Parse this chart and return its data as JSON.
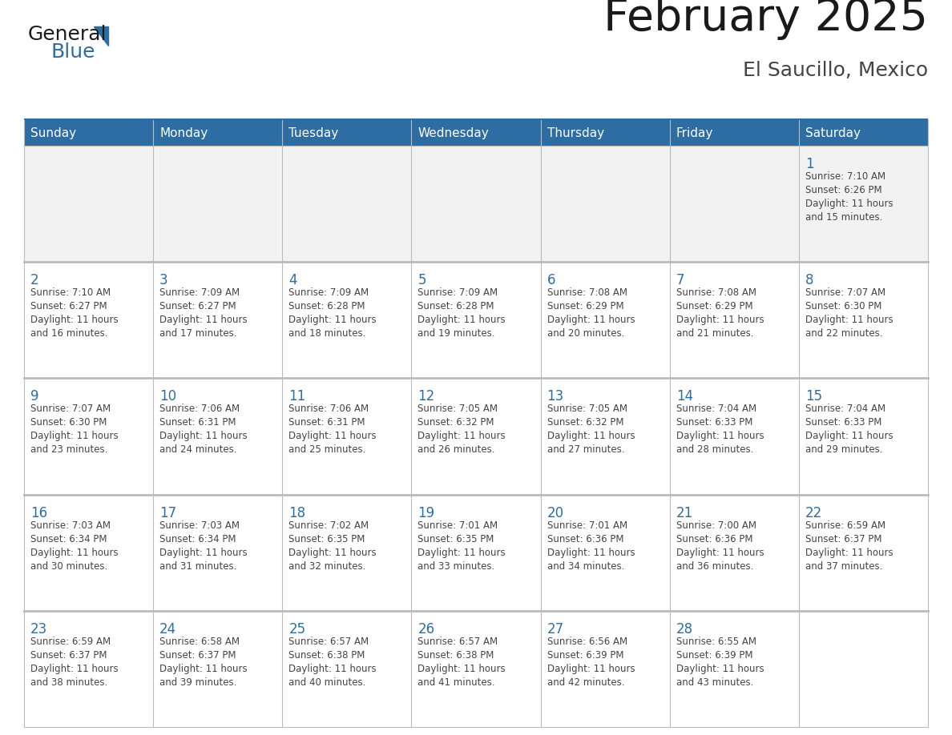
{
  "title": "February 2025",
  "subtitle": "El Saucillo, Mexico",
  "header_bg": "#2E6DA4",
  "header_text": "#FFFFFF",
  "cell_bg_row0": "#F2F2F2",
  "cell_bg_other": "#FFFFFF",
  "day_names": [
    "Sunday",
    "Monday",
    "Tuesday",
    "Wednesday",
    "Thursday",
    "Friday",
    "Saturday"
  ],
  "title_color": "#1a1a1a",
  "subtitle_color": "#444444",
  "day_num_color": "#2E6DA4",
  "cell_text_color": "#444444",
  "grid_color": "#BBBBBB",
  "logo_general_color": "#1a1a1a",
  "logo_blue_color": "#2E6DA4",
  "logo_triangle_color": "#2E6DA4",
  "calendar": [
    [
      null,
      null,
      null,
      null,
      null,
      null,
      1
    ],
    [
      2,
      3,
      4,
      5,
      6,
      7,
      8
    ],
    [
      9,
      10,
      11,
      12,
      13,
      14,
      15
    ],
    [
      16,
      17,
      18,
      19,
      20,
      21,
      22
    ],
    [
      23,
      24,
      25,
      26,
      27,
      28,
      null
    ]
  ],
  "sunrise": {
    "1": "7:10 AM",
    "2": "7:10 AM",
    "3": "7:09 AM",
    "4": "7:09 AM",
    "5": "7:09 AM",
    "6": "7:08 AM",
    "7": "7:08 AM",
    "8": "7:07 AM",
    "9": "7:07 AM",
    "10": "7:06 AM",
    "11": "7:06 AM",
    "12": "7:05 AM",
    "13": "7:05 AM",
    "14": "7:04 AM",
    "15": "7:04 AM",
    "16": "7:03 AM",
    "17": "7:03 AM",
    "18": "7:02 AM",
    "19": "7:01 AM",
    "20": "7:01 AM",
    "21": "7:00 AM",
    "22": "6:59 AM",
    "23": "6:59 AM",
    "24": "6:58 AM",
    "25": "6:57 AM",
    "26": "6:57 AM",
    "27": "6:56 AM",
    "28": "6:55 AM"
  },
  "sunset": {
    "1": "6:26 PM",
    "2": "6:27 PM",
    "3": "6:27 PM",
    "4": "6:28 PM",
    "5": "6:28 PM",
    "6": "6:29 PM",
    "7": "6:29 PM",
    "8": "6:30 PM",
    "9": "6:30 PM",
    "10": "6:31 PM",
    "11": "6:31 PM",
    "12": "6:32 PM",
    "13": "6:32 PM",
    "14": "6:33 PM",
    "15": "6:33 PM",
    "16": "6:34 PM",
    "17": "6:34 PM",
    "18": "6:35 PM",
    "19": "6:35 PM",
    "20": "6:36 PM",
    "21": "6:36 PM",
    "22": "6:37 PM",
    "23": "6:37 PM",
    "24": "6:37 PM",
    "25": "6:38 PM",
    "26": "6:38 PM",
    "27": "6:39 PM",
    "28": "6:39 PM"
  },
  "daylight_hours": {
    "1": "11 hours and 15 minutes.",
    "2": "11 hours and 16 minutes.",
    "3": "11 hours and 17 minutes.",
    "4": "11 hours and 18 minutes.",
    "5": "11 hours and 19 minutes.",
    "6": "11 hours and 20 minutes.",
    "7": "11 hours and 21 minutes.",
    "8": "11 hours and 22 minutes.",
    "9": "11 hours and 23 minutes.",
    "10": "11 hours and 24 minutes.",
    "11": "11 hours and 25 minutes.",
    "12": "11 hours and 26 minutes.",
    "13": "11 hours and 27 minutes.",
    "14": "11 hours and 28 minutes.",
    "15": "11 hours and 29 minutes.",
    "16": "11 hours and 30 minutes.",
    "17": "11 hours and 31 minutes.",
    "18": "11 hours and 32 minutes.",
    "19": "11 hours and 33 minutes.",
    "20": "11 hours and 34 minutes.",
    "21": "11 hours and 36 minutes.",
    "22": "11 hours and 37 minutes.",
    "23": "11 hours and 38 minutes.",
    "24": "11 hours and 39 minutes.",
    "25": "11 hours and 40 minutes.",
    "26": "11 hours and 41 minutes.",
    "27": "11 hours and 42 minutes.",
    "28": "11 hours and 43 minutes."
  }
}
